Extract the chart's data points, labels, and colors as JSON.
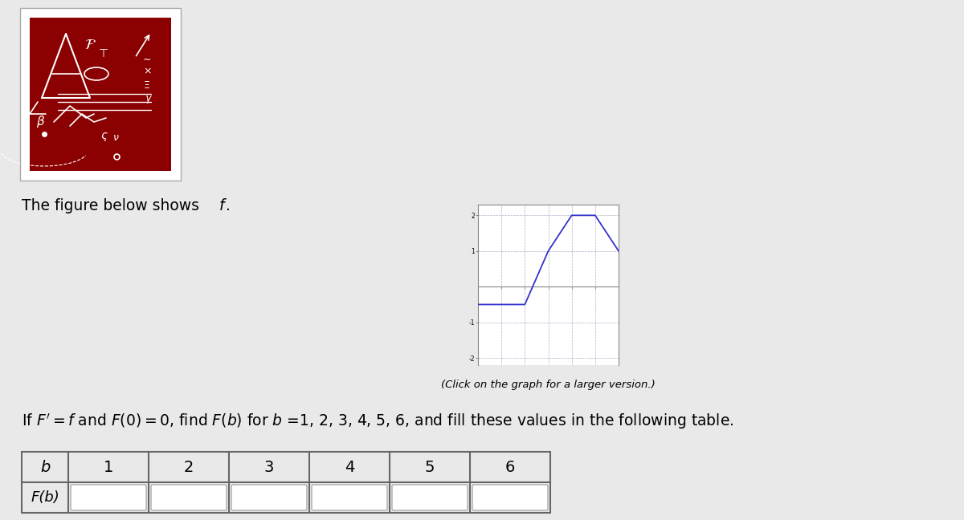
{
  "bg_color": "#e9e9e9",
  "image_bg_color": "#8b0000",
  "image_border_color": "#cccccc",
  "graph_x": [
    0,
    1,
    2,
    3,
    4,
    5,
    6
  ],
  "graph_y": [
    -0.5,
    -0.5,
    -0.5,
    1.0,
    2.0,
    2.0,
    1.0
  ],
  "graph_xlim": [
    0,
    6
  ],
  "graph_ylim": [
    -2.2,
    2.3
  ],
  "graph_ytick_labels": [
    "-2",
    "-1",
    "1",
    "2"
  ],
  "graph_ytick_vals": [
    -2,
    -1,
    1,
    2
  ],
  "graph_color": "#3333cc",
  "text_shows": "The figure below shows ",
  "text_f_italic": "f",
  "text_click": "(Click on the graph for a larger version.)",
  "text_main": "If $F' = f$ and $F(0) = 0$, find $F(b)$ for $b$ =1, 2, 3, 4, 5, 6, and fill these values in the following table.",
  "table_b_values": [
    "1",
    "2",
    "3",
    "4",
    "5",
    "6"
  ]
}
